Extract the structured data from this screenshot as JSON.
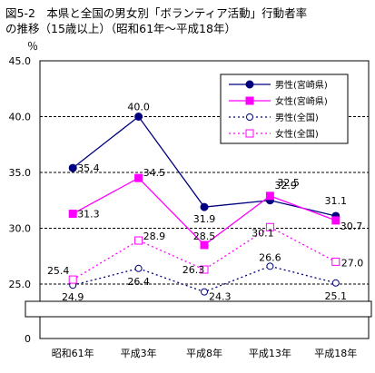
{
  "chart_data": {
    "type": "line",
    "title": "図5-2　本県と全国の男女別「ボランティア活動」行動者率\nの推移（15歳以上）（昭和61年～平成18年）",
    "ylabel": "％",
    "ylim": [
      0,
      45
    ],
    "yticks": [
      "45.0",
      "40.0",
      "35.0",
      "30.0",
      "25.0",
      "0"
    ],
    "axis_break": true,
    "grid": true,
    "legend_position": "top-right",
    "categories": [
      "昭和61年",
      "平成3年",
      "平成8年",
      "平成13年",
      "平成18年"
    ],
    "series": [
      {
        "name": "男性(宮崎県)",
        "values": [
          35.4,
          40.0,
          31.9,
          32.5,
          31.1
        ],
        "labels": [
          "35.4",
          "40.0",
          "31.9",
          "32.5",
          "31.1"
        ],
        "color": "#000080",
        "line": "solid",
        "marker": "filled-circle"
      },
      {
        "name": "女性(宮崎県)",
        "values": [
          31.3,
          34.5,
          28.5,
          32.9,
          30.7
        ],
        "labels": [
          "31.3",
          "34.5",
          "28.5",
          "32.9",
          "30.7"
        ],
        "color": "#ff00ff",
        "line": "solid",
        "marker": "filled-square"
      },
      {
        "name": "男性(全国)",
        "values": [
          24.9,
          26.4,
          24.3,
          26.6,
          25.1
        ],
        "labels": [
          "24.9",
          "26.4",
          "24.3",
          "26.6",
          "25.1"
        ],
        "color": "#000080",
        "line": "dotted",
        "marker": "open-circle"
      },
      {
        "name": "女性(全国)",
        "values": [
          25.4,
          28.9,
          26.3,
          30.1,
          27.0
        ],
        "labels": [
          "25.4",
          "28.9",
          "26.3",
          "30.1",
          "27.0"
        ],
        "color": "#ff00ff",
        "line": "dotted",
        "marker": "open-square"
      }
    ]
  }
}
